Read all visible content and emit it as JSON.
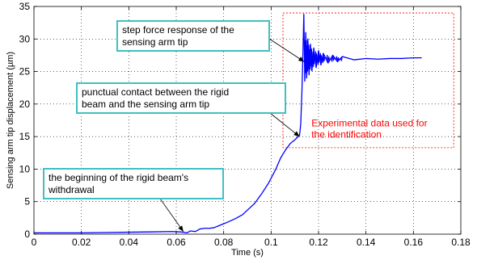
{
  "chart_data": {
    "type": "line",
    "title": "",
    "xlabel": "Time (s)",
    "ylabel": "Sensing arm tip displacement (µm)",
    "xlim": [
      0,
      0.18
    ],
    "ylim": [
      0,
      35
    ],
    "x_ticks": [
      "0",
      "0.02",
      "0.04",
      "0.06",
      "0.08",
      "0.1",
      "0.12",
      "0.14",
      "0.16",
      "0.18"
    ],
    "y_ticks": [
      "0",
      "5",
      "10",
      "15",
      "20",
      "25",
      "30",
      "35"
    ],
    "grid": true,
    "series": [
      {
        "color": "#0000ff",
        "x": [
          0,
          0.01,
          0.02,
          0.03,
          0.04,
          0.05,
          0.058,
          0.0615,
          0.063,
          0.0645,
          0.066,
          0.068,
          0.07,
          0.072,
          0.074,
          0.076,
          0.078,
          0.08,
          0.082,
          0.085,
          0.088,
          0.09,
          0.093,
          0.096,
          0.099,
          0.102,
          0.104,
          0.106,
          0.108,
          0.11,
          0.112,
          0.1125,
          0.113,
          0.1134,
          0.1138,
          0.1142,
          0.1146,
          0.115,
          0.1155,
          0.116,
          0.1166,
          0.1172,
          0.118,
          0.119,
          0.12,
          0.121,
          0.122,
          0.124,
          0.126,
          0.128,
          0.13,
          0.135,
          0.14,
          0.145,
          0.15,
          0.155,
          0.16,
          0.1635
        ],
        "y": [
          0.2,
          0.2,
          0.2,
          0.25,
          0.3,
          0.35,
          0.4,
          0.35,
          0.3,
          0.2,
          0.5,
          0.4,
          0.8,
          0.9,
          0.9,
          1.0,
          1.3,
          1.6,
          1.9,
          2.4,
          3.0,
          3.7,
          4.7,
          6.2,
          7.9,
          10.0,
          11.7,
          12.9,
          13.9,
          14.5,
          15.2,
          17.0,
          22.0,
          27.5,
          33.8,
          23.5,
          31.0,
          24.0,
          30.0,
          24.5,
          29.2,
          25.1,
          28.6,
          25.6,
          28.2,
          26.0,
          27.8,
          26.3,
          27.5,
          26.5,
          27.3,
          26.8,
          27.0,
          26.9,
          27.0,
          27.0,
          27.1,
          27.1
        ]
      }
    ],
    "annotations": [
      {
        "lines": [
          "step force response of the",
          "sensing arm tip"
        ],
        "point": [
          0.114,
          26.5
        ]
      },
      {
        "lines": [
          "punctual contact between the rigid",
          "beam and the sensing arm tip"
        ],
        "point": [
          0.112,
          15.0
        ]
      },
      {
        "lines": [
          "the beginning of the rigid beam's",
          "withdrawal"
        ],
        "point": [
          0.063,
          0.4
        ]
      }
    ],
    "region": {
      "x": [
        0.105,
        0.177
      ],
      "y": [
        13.3,
        34.0
      ],
      "color": "#ff0000",
      "lines": [
        "Experimental data used for",
        "the identification"
      ]
    },
    "colors": {
      "line": "#0000ff",
      "box_border": "#40c0c0",
      "region": "#ff0000"
    }
  }
}
